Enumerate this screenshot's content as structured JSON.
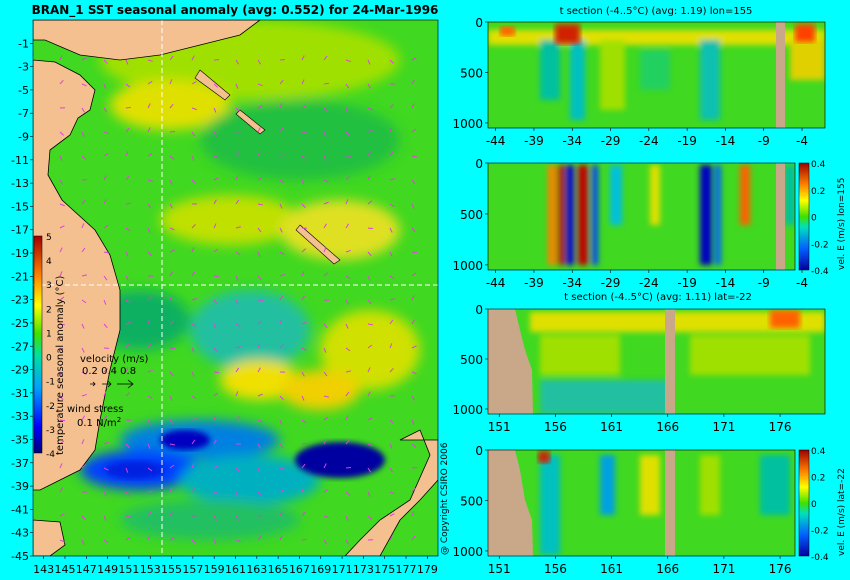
{
  "chart_data": [
    {
      "type": "heatmap",
      "title": "BRAN_1 SST seasonal anomaly (avg: 0.552) for 24-Mar-1996",
      "x_ticks": [
        "143",
        "145",
        "147",
        "149",
        "151",
        "153",
        "155",
        "157",
        "159",
        "161",
        "163",
        "165",
        "167",
        "169",
        "171",
        "173",
        "175",
        "177",
        "179"
      ],
      "y_ticks": [
        "-1",
        "-3",
        "-5",
        "-7",
        "-9",
        "-11",
        "-13",
        "-15",
        "-17",
        "-19",
        "-21",
        "-23",
        "-25",
        "-27",
        "-29",
        "-31",
        "-33",
        "-35",
        "-37",
        "-39",
        "-41",
        "-43",
        "-45"
      ],
      "xlim": [
        142,
        180
      ],
      "ylim": [
        -45,
        1
      ],
      "crosshair": {
        "lon": 155,
        "lat": -22
      },
      "colorbar": {
        "label": "temperature seasonal anomaly (°C)",
        "ticks": [
          "5",
          "4",
          "3",
          "2",
          "1",
          "0",
          "-1",
          "-2",
          "-3",
          "-4"
        ],
        "range": [
          -4,
          5
        ]
      },
      "velocity_legend": {
        "label": "velocity (m/s)",
        "values": "0.2 0.4 0.8"
      },
      "wind_legend": {
        "label": "wind stress",
        "value": "0.1 N/m",
        "sup": "2"
      }
    },
    {
      "type": "heatmap",
      "title": "t section (-4..5°C) (avg: 1.19) lon=155",
      "x_ticks": [
        "-44",
        "-39",
        "-34",
        "-29",
        "-24",
        "-19",
        "-14",
        "-9",
        "-4"
      ],
      "xlim": [
        -45,
        -1
      ],
      "y_ticks": [
        "0",
        "500",
        "1000"
      ],
      "ylim": [
        0,
        1050
      ]
    },
    {
      "type": "heatmap",
      "title": "",
      "x_ticks": [
        "-44",
        "-39",
        "-34",
        "-29",
        "-24",
        "-19",
        "-14",
        "-9",
        "-4"
      ],
      "xlim": [
        -45,
        -1
      ],
      "y_ticks": [
        "0",
        "500",
        "1000"
      ],
      "ylim": [
        0,
        1050
      ],
      "colorbar": {
        "label": "vel. E (m/s) lon=155",
        "ticks": [
          "0.4",
          "0.2",
          "0",
          "-0.2",
          "-0.4"
        ],
        "range": [
          -0.4,
          0.4
        ]
      }
    },
    {
      "type": "heatmap",
      "title": "t section (-4..5°C) (avg: 1.11) lat=-22",
      "x_ticks": [
        "151",
        "156",
        "161",
        "166",
        "171",
        "176"
      ],
      "xlim": [
        150,
        180
      ],
      "y_ticks": [
        "0",
        "500",
        "1000"
      ],
      "ylim": [
        0,
        1050
      ]
    },
    {
      "type": "heatmap",
      "title": "",
      "x_ticks": [
        "151",
        "156",
        "161",
        "166",
        "171",
        "176"
      ],
      "xlim": [
        150,
        180
      ],
      "y_ticks": [
        "0",
        "500",
        "1000"
      ],
      "ylim": [
        0,
        1050
      ],
      "colorbar": {
        "label": "vel. E (m/s) lat=-22",
        "ticks": [
          "0.4",
          "0.2",
          "0",
          "-0.2",
          "-0.4"
        ],
        "range": [
          -0.4,
          0.4
        ]
      }
    }
  ],
  "copyright": "@ Copyright CSIRO 2006"
}
